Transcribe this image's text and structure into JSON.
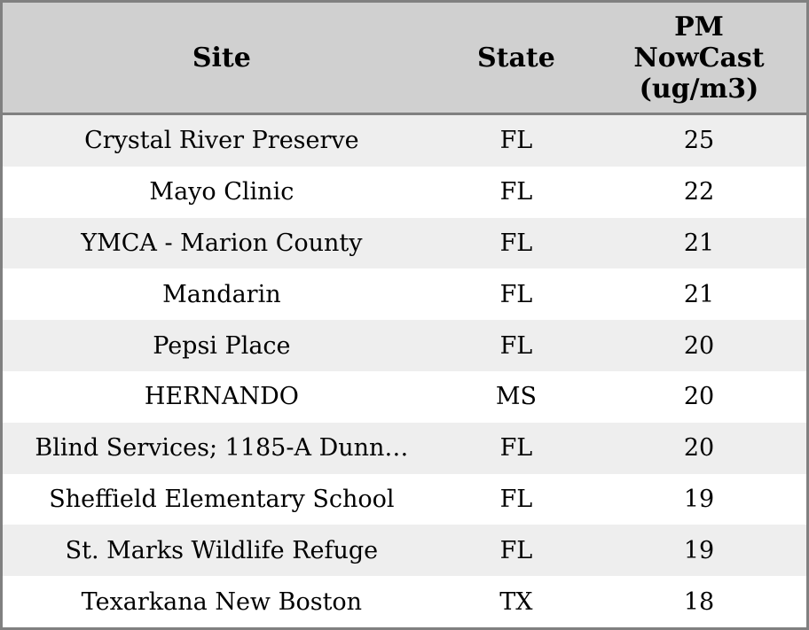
{
  "colors": {
    "outer_border": "#808080",
    "header_separator": "#808080",
    "header_bg": "#d0d0d0",
    "row_stripe_bg": "#eeeeee",
    "row_bg": "#ffffff",
    "text": "#000000"
  },
  "chart_data": {
    "type": "table",
    "columns": [
      "Site",
      "State",
      "PM NowCast (ug/m3)"
    ],
    "rows": [
      [
        "Crystal River Preserve",
        "FL",
        25
      ],
      [
        "Mayo Clinic",
        "FL",
        22
      ],
      [
        "YMCA - Marion County",
        "FL",
        21
      ],
      [
        "Mandarin",
        "FL",
        21
      ],
      [
        "Pepsi Place",
        "FL",
        20
      ],
      [
        "HERNANDO",
        "MS",
        20
      ],
      [
        "Blind Services; 1185-A Dunn…",
        "FL",
        20
      ],
      [
        "Sheffield Elementary School",
        "FL",
        19
      ],
      [
        "St. Marks Wildlife Refuge",
        "FL",
        19
      ],
      [
        "Texarkana New Boston",
        "TX",
        18
      ]
    ],
    "layout": {
      "zebra_striping": true,
      "text_align": "center",
      "column_width_pct": [
        54.5,
        18.8,
        26.7
      ]
    }
  }
}
